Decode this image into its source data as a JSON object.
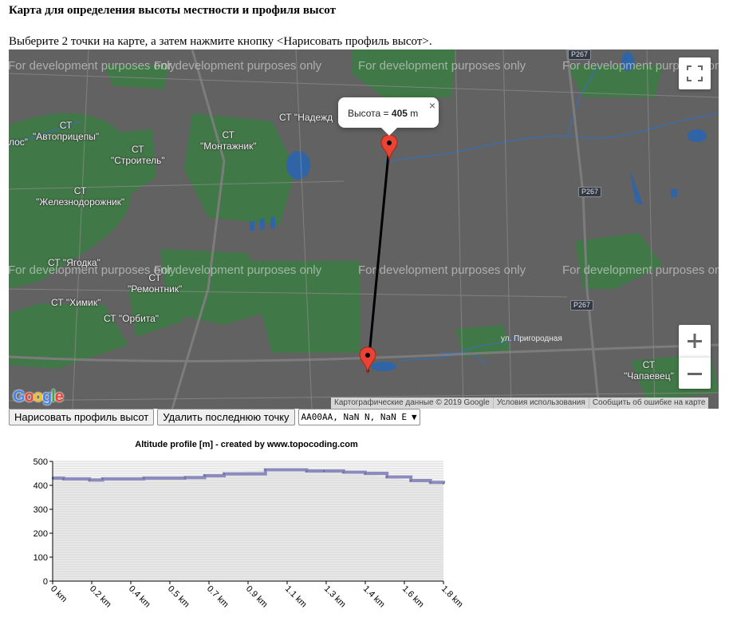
{
  "page": {
    "title": "Карта для определения высоты местности и профиля высот",
    "instructions": "Выберите 2 точки на карте, а затем нажмите кнопку <Нарисовать профиль высот>."
  },
  "map": {
    "watermark": "For development purposes only",
    "labels": [
      "СТ\n\"Автоприцепы\"",
      "СТ\n\"Строитель\"",
      "СТ\n\"Монтажник\"",
      "СТ \"Надежд",
      "СТ\n\"Железнодорожник\"",
      "СТ \"Ягодка\"",
      "СТ\n\"Ремонтник\"",
      "СТ \"Химик\"",
      "СТ \"Орбита\"",
      "СТ\n\"Чапаевец\"",
      "лос\""
    ],
    "street": "ул. Пригородная",
    "roads": [
      "P267",
      "P267",
      "P267"
    ],
    "logo": "Google",
    "attribution": [
      "Картографические данные © 2019 Google",
      "Условия использования",
      "Сообщить об ошибке на карте"
    ],
    "info_window": {
      "prefix": "Высота = ",
      "value": "405",
      "unit": " m",
      "close": "×"
    },
    "icons": {
      "fullscreen": "fullscreen-icon",
      "zoom_in": "plus-icon",
      "zoom_out": "minus-icon",
      "marker": "map-pin-icon"
    },
    "colors": {
      "background": "#626262",
      "green": "#3f7f44",
      "water": "#2e63a8",
      "route": "#000000",
      "marker": "#ea4335"
    }
  },
  "controls": {
    "draw_button": "Нарисовать профиль высот",
    "delete_button": "Удалить последнюю точку",
    "select_value": "AA00AA, NaN N, NaN E",
    "select_arrow": "▼"
  },
  "chart_data": {
    "type": "area",
    "title": "Altitude profile [m] - created by www.topocoding.com",
    "xlabel": "",
    "ylabel": "",
    "x_unit": "km",
    "xlim": [
      0,
      1.8
    ],
    "ylim": [
      0,
      500
    ],
    "yticks": [
      0,
      100,
      200,
      300,
      400,
      500
    ],
    "xticks": [
      "0 km",
      "0.2 km",
      "0.4 km",
      "0.5 km",
      "0.7 km",
      "0.9 km",
      "1.1 km",
      "1.3 km",
      "1.4 km",
      "1.6 km",
      "1.8 km"
    ],
    "grid": true,
    "x": [
      0,
      0.05,
      0.17,
      0.23,
      0.42,
      0.61,
      0.7,
      0.79,
      0.98,
      1.17,
      1.25,
      1.34,
      1.44,
      1.54,
      1.65,
      1.74,
      1.8
    ],
    "values": [
      430,
      427,
      422,
      427,
      430,
      432,
      440,
      448,
      465,
      460,
      460,
      455,
      450,
      435,
      420,
      412,
      408
    ],
    "colors": {
      "line": "#8b8bbd",
      "fill": "#d0d0d0",
      "grid": "#dadada"
    }
  }
}
